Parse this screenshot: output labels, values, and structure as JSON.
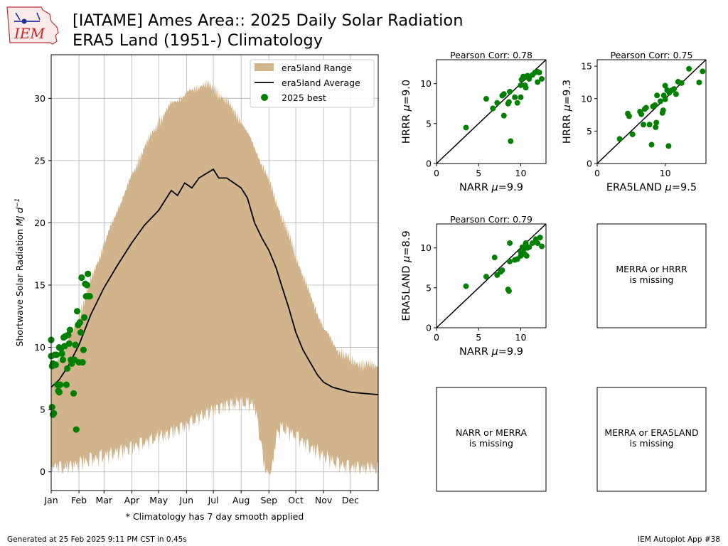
{
  "header": {
    "title_line1": "[IATAME] Ames Area:: 2025 Daily Solar Radiation",
    "title_line2": "ERA5 Land (1951-) Climatology",
    "logo_text": "IEM"
  },
  "footer": {
    "generated": "Generated at 25 Feb 2025 9:11 PM CST in 0.45s",
    "app": "IEM Autoplot App #38"
  },
  "colors": {
    "range_fill": "#d2b48c",
    "average_line": "#000000",
    "points": "#008000"
  },
  "chart_data": [
    {
      "type": "area",
      "title": "",
      "ylabel": "Shortwave Solar Radiation MJ d^{-1}",
      "ylabel_parts": [
        "Shortwave Solar Radiation ",
        "MJ d",
        "−1"
      ],
      "xlabel": "* Climatology has 7 day smooth applied",
      "xlim": [
        1,
        366
      ],
      "ylim": [
        -1.5,
        33.5
      ],
      "yticks": [
        0,
        5,
        10,
        15,
        20,
        25,
        30
      ],
      "month_ticks": [
        {
          "label": "Jan",
          "doy": 1
        },
        {
          "label": "Feb",
          "doy": 32
        },
        {
          "label": "Mar",
          "doy": 60
        },
        {
          "label": "Apr",
          "doy": 91
        },
        {
          "label": "May",
          "doy": 121
        },
        {
          "label": "Jun",
          "doy": 152
        },
        {
          "label": "Jul",
          "doy": 182
        },
        {
          "label": "Aug",
          "doy": 213
        },
        {
          "label": "Sep",
          "doy": 244
        },
        {
          "label": "Oct",
          "doy": 274
        },
        {
          "label": "Nov",
          "doy": 305
        },
        {
          "label": "Dec",
          "doy": 335
        }
      ],
      "grid": true,
      "legend_position": "top-right",
      "legend": [
        "era5land Range",
        "era5land Average",
        "2025 best"
      ],
      "range_upper": [
        [
          1,
          8.8
        ],
        [
          15,
          10.2
        ],
        [
          32,
          12.8
        ],
        [
          45,
          15.8
        ],
        [
          60,
          18.7
        ],
        [
          75,
          21.5
        ],
        [
          91,
          24.2
        ],
        [
          105,
          26.5
        ],
        [
          121,
          28.5
        ],
        [
          135,
          30.0
        ],
        [
          152,
          30.8
        ],
        [
          166,
          31.4
        ],
        [
          172,
          31.6
        ],
        [
          182,
          31.2
        ],
        [
          197,
          30.2
        ],
        [
          213,
          28.6
        ],
        [
          228,
          26.5
        ],
        [
          244,
          23.8
        ],
        [
          258,
          21.0
        ],
        [
          274,
          17.8
        ],
        [
          290,
          14.6
        ],
        [
          305,
          12.0
        ],
        [
          320,
          10.3
        ],
        [
          335,
          9.4
        ],
        [
          350,
          9.0
        ],
        [
          366,
          9.0
        ]
      ],
      "range_lower": [
        [
          1,
          1.2
        ],
        [
          15,
          0.9
        ],
        [
          32,
          1.3
        ],
        [
          45,
          1.6
        ],
        [
          60,
          1.9
        ],
        [
          75,
          2.2
        ],
        [
          91,
          2.6
        ],
        [
          105,
          3.0
        ],
        [
          121,
          3.4
        ],
        [
          135,
          3.8
        ],
        [
          152,
          4.4
        ],
        [
          166,
          5.0
        ],
        [
          182,
          5.6
        ],
        [
          197,
          6.0
        ],
        [
          213,
          6.2
        ],
        [
          228,
          6.0
        ],
        [
          236,
          2.6
        ],
        [
          240,
          0.5
        ],
        [
          246,
          0.2
        ],
        [
          252,
          3.4
        ],
        [
          258,
          4.2
        ],
        [
          274,
          3.5
        ],
        [
          290,
          2.6
        ],
        [
          305,
          1.9
        ],
        [
          320,
          1.3
        ],
        [
          335,
          1.0
        ],
        [
          350,
          0.9
        ],
        [
          366,
          0.9
        ]
      ],
      "average": [
        [
          1,
          6.8
        ],
        [
          10,
          7.4
        ],
        [
          20,
          8.5
        ],
        [
          32,
          10.2
        ],
        [
          45,
          12.6
        ],
        [
          60,
          14.8
        ],
        [
          75,
          16.6
        ],
        [
          91,
          18.4
        ],
        [
          105,
          19.8
        ],
        [
          121,
          21.0
        ],
        [
          135,
          22.6
        ],
        [
          142,
          22.2
        ],
        [
          150,
          23.2
        ],
        [
          158,
          22.8
        ],
        [
          166,
          23.6
        ],
        [
          175,
          24.0
        ],
        [
          182,
          24.3
        ],
        [
          188,
          23.6
        ],
        [
          197,
          23.6
        ],
        [
          205,
          23.2
        ],
        [
          213,
          22.8
        ],
        [
          220,
          22.0
        ],
        [
          228,
          20.0
        ],
        [
          236,
          18.8
        ],
        [
          244,
          17.8
        ],
        [
          252,
          16.4
        ],
        [
          258,
          15.0
        ],
        [
          266,
          13.2
        ],
        [
          274,
          11.2
        ],
        [
          282,
          9.8
        ],
        [
          290,
          8.8
        ],
        [
          298,
          7.8
        ],
        [
          305,
          7.2
        ],
        [
          315,
          6.8
        ],
        [
          325,
          6.6
        ],
        [
          335,
          6.4
        ],
        [
          350,
          6.3
        ],
        [
          366,
          6.2
        ]
      ],
      "points": [
        [
          1,
          10.6
        ],
        [
          1,
          9.3
        ],
        [
          2,
          8.5
        ],
        [
          2,
          5.2
        ],
        [
          3,
          8.7
        ],
        [
          3,
          4.6
        ],
        [
          4,
          4.7
        ],
        [
          5,
          9.4
        ],
        [
          6,
          8.6
        ],
        [
          7,
          9.4
        ],
        [
          8,
          7.0
        ],
        [
          9,
          6.5
        ],
        [
          10,
          6.4
        ],
        [
          10,
          10.0
        ],
        [
          11,
          7.0
        ],
        [
          12,
          9.9
        ],
        [
          13,
          9.5
        ],
        [
          14,
          9.0
        ],
        [
          15,
          10.8
        ],
        [
          16,
          10.1
        ],
        [
          17,
          10.9
        ],
        [
          18,
          7.0
        ],
        [
          19,
          8.3
        ],
        [
          20,
          11.0
        ],
        [
          21,
          10.3
        ],
        [
          22,
          11.4
        ],
        [
          23,
          9.0
        ],
        [
          24,
          8.7
        ],
        [
          26,
          6.3
        ],
        [
          27,
          9.0
        ],
        [
          28,
          10.2
        ],
        [
          29,
          3.4
        ],
        [
          30,
          12.9
        ],
        [
          31,
          11.8
        ],
        [
          32,
          8.8
        ],
        [
          33,
          12.0
        ],
        [
          34,
          11.2
        ],
        [
          35,
          15.6
        ],
        [
          36,
          8.8
        ],
        [
          37,
          9.8
        ],
        [
          38,
          12.4
        ],
        [
          39,
          15.1
        ],
        [
          40,
          14.1
        ],
        [
          41,
          15.0
        ],
        [
          42,
          15.9
        ],
        [
          43,
          14.1
        ],
        [
          44,
          14.1
        ]
      ]
    },
    {
      "type": "scatter",
      "title": "Pearson Corr: 0.78",
      "xlabel_text": "NARR ",
      "xlabel_mu": "9.9",
      "ylabel_text": "HRRR ",
      "ylabel_mu": "9.0",
      "xlim": [
        0,
        13
      ],
      "ylim": [
        0,
        13
      ],
      "xticks": [
        0,
        5,
        10
      ],
      "yticks": [
        0,
        5,
        10
      ],
      "points": [
        [
          3.5,
          4.5
        ],
        [
          5.9,
          8.1
        ],
        [
          6.7,
          6.9
        ],
        [
          7.2,
          7.6
        ],
        [
          7.8,
          8.5
        ],
        [
          8.0,
          6.0
        ],
        [
          8.0,
          8.7
        ],
        [
          8.5,
          7.5
        ],
        [
          8.6,
          7.7
        ],
        [
          8.7,
          9.0
        ],
        [
          8.8,
          2.8
        ],
        [
          9.3,
          8.3
        ],
        [
          9.6,
          7.6
        ],
        [
          10.0,
          8.3
        ],
        [
          10.0,
          9.8
        ],
        [
          10.1,
          10.5
        ],
        [
          10.3,
          10.9
        ],
        [
          10.5,
          9.8
        ],
        [
          10.6,
          9.5
        ],
        [
          10.8,
          11.0
        ],
        [
          11.0,
          10.6
        ],
        [
          11.4,
          11.1
        ],
        [
          11.7,
          11.4
        ],
        [
          12.0,
          11.5
        ],
        [
          12.0,
          10.2
        ],
        [
          12.2,
          11.4
        ],
        [
          12.5,
          10.6
        ]
      ]
    },
    {
      "type": "scatter",
      "title": "Pearson Corr: 0.75",
      "xlabel_text": "ERA5LAND ",
      "xlabel_mu": "9.5",
      "ylabel_text": "HRRR ",
      "ylabel_mu": "9.3",
      "xlim": [
        0,
        16
      ],
      "ylim": [
        0,
        16
      ],
      "xticks": [
        0,
        10
      ],
      "yticks": [
        0,
        5,
        10,
        15
      ],
      "points": [
        [
          3.3,
          3.8
        ],
        [
          4.5,
          7.7
        ],
        [
          4.7,
          7.3
        ],
        [
          5.2,
          4.5
        ],
        [
          6.3,
          8.0
        ],
        [
          6.5,
          7.6
        ],
        [
          6.8,
          6.0
        ],
        [
          7.0,
          8.4
        ],
        [
          7.2,
          8.6
        ],
        [
          7.7,
          6.0
        ],
        [
          8.0,
          2.9
        ],
        [
          8.2,
          8.8
        ],
        [
          8.5,
          9.0
        ],
        [
          8.6,
          5.6
        ],
        [
          8.7,
          6.3
        ],
        [
          8.8,
          10.5
        ],
        [
          9.3,
          9.6
        ],
        [
          9.6,
          7.8
        ],
        [
          9.7,
          8.2
        ],
        [
          9.8,
          10.5
        ],
        [
          10.0,
          12.0
        ],
        [
          10.0,
          9.9
        ],
        [
          10.3,
          11.3
        ],
        [
          10.5,
          2.7
        ],
        [
          10.6,
          10.9
        ],
        [
          11.0,
          11.3
        ],
        [
          11.3,
          11.5
        ],
        [
          11.6,
          10.7
        ],
        [
          11.9,
          12.6
        ],
        [
          12.4,
          12.4
        ],
        [
          13.5,
          14.6
        ],
        [
          15.0,
          12.5
        ],
        [
          15.5,
          14.2
        ]
      ]
    },
    {
      "type": "scatter",
      "title": "Pearson Corr: 0.79",
      "xlabel_text": "NARR ",
      "xlabel_mu": "9.9",
      "ylabel_text": "ERA5LAND ",
      "ylabel_mu": "8.9",
      "xlim": [
        0,
        13
      ],
      "ylim": [
        0,
        13
      ],
      "xticks": [
        0,
        5,
        10
      ],
      "yticks": [
        0,
        5,
        10
      ],
      "points": [
        [
          3.5,
          5.2
        ],
        [
          5.9,
          6.4
        ],
        [
          6.9,
          8.8
        ],
        [
          7.2,
          6.6
        ],
        [
          7.6,
          7.0
        ],
        [
          7.8,
          7.2
        ],
        [
          8.5,
          4.8
        ],
        [
          8.6,
          4.6
        ],
        [
          8.7,
          10.6
        ],
        [
          8.7,
          8.3
        ],
        [
          9.3,
          8.5
        ],
        [
          9.6,
          8.6
        ],
        [
          10.0,
          9.5
        ],
        [
          10.0,
          9.0
        ],
        [
          10.2,
          10.1
        ],
        [
          10.3,
          9.7
        ],
        [
          10.5,
          9.2
        ],
        [
          10.6,
          10.6
        ],
        [
          10.7,
          9.0
        ],
        [
          10.8,
          10.0
        ],
        [
          11.0,
          10.1
        ],
        [
          11.4,
          10.6
        ],
        [
          11.8,
          11.1
        ],
        [
          12.0,
          10.6
        ],
        [
          12.3,
          11.3
        ],
        [
          12.5,
          10.2
        ]
      ]
    }
  ],
  "missing_panels": {
    "p1": "MERRA or HRRR\nis missing",
    "p2": "NARR or MERRA\nis missing",
    "p3": "MERRA or ERA5LAND\nis missing"
  }
}
